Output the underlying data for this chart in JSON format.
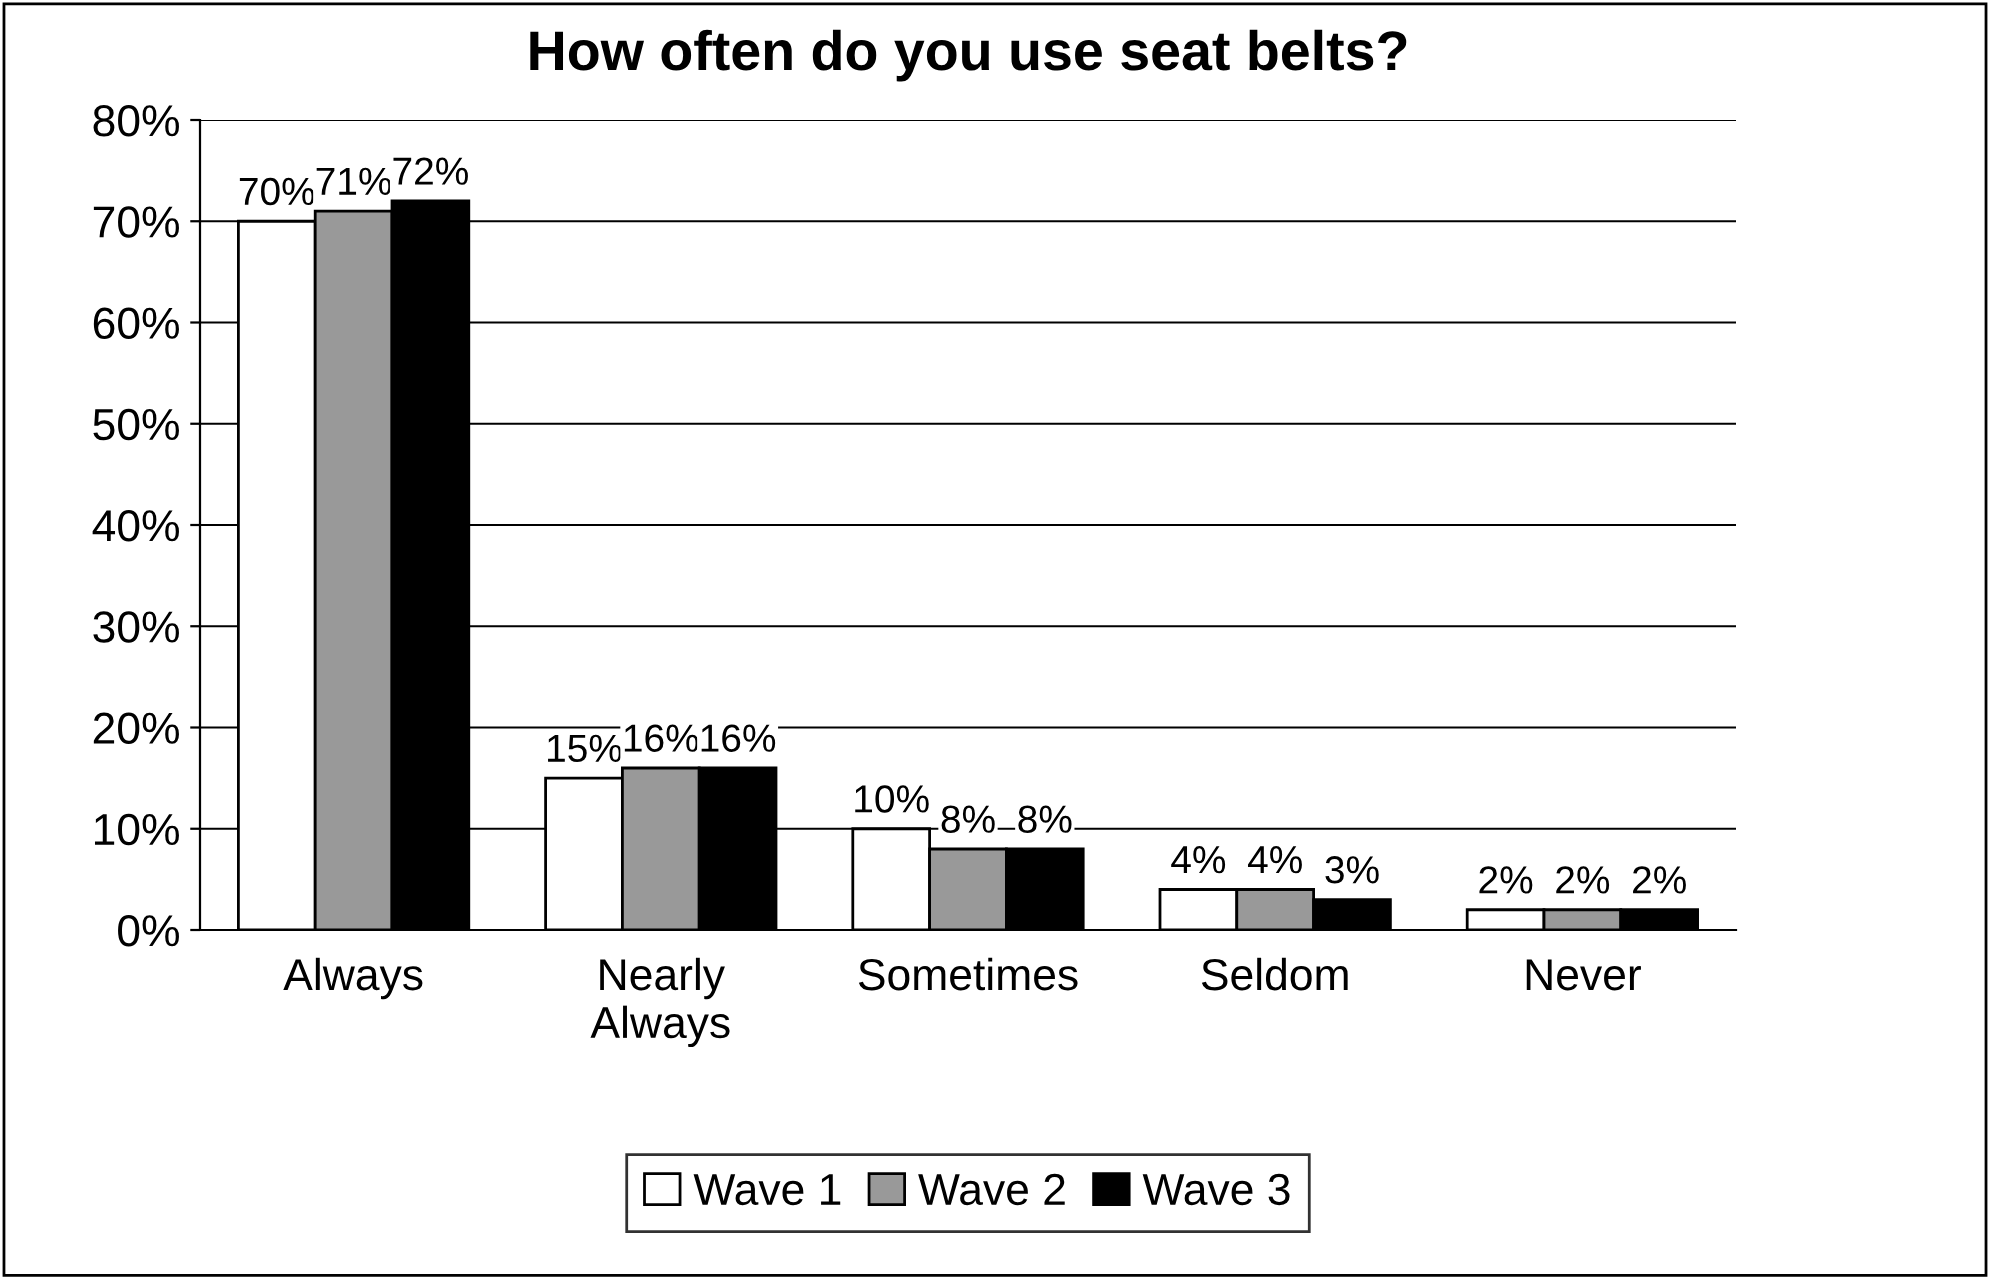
{
  "chart_data": {
    "type": "bar",
    "title": "How often do you use seat belts?",
    "categories": [
      "Always",
      "Nearly Always",
      "Sometimes",
      "Seldom",
      "Never"
    ],
    "series": [
      {
        "name": "Wave 1",
        "color": "#ffffff",
        "values": [
          70,
          15,
          10,
          4,
          2
        ],
        "value_labels": [
          "70%",
          "15%",
          "10%",
          "4%",
          "2%"
        ]
      },
      {
        "name": "Wave 2",
        "color": "#999999",
        "values": [
          71,
          16,
          8,
          4,
          2
        ],
        "value_labels": [
          "71%",
          "16%",
          "8%",
          "4%",
          "2%"
        ]
      },
      {
        "name": "Wave 3",
        "color": "#000000",
        "values": [
          72,
          16,
          8,
          3,
          2
        ],
        "value_labels": [
          "72%",
          "16%",
          "8%",
          "3%",
          "2%"
        ]
      }
    ],
    "ylim": [
      0,
      80
    ],
    "yticks": [
      {
        "value": 0,
        "label": "0%"
      },
      {
        "value": 10,
        "label": "10%"
      },
      {
        "value": 20,
        "label": "20%"
      },
      {
        "value": 30,
        "label": "30%"
      },
      {
        "value": 40,
        "label": "40%"
      },
      {
        "value": 50,
        "label": "50%"
      },
      {
        "value": 60,
        "label": "60%"
      },
      {
        "value": 70,
        "label": "70%"
      },
      {
        "value": 80,
        "label": "80%"
      }
    ],
    "grid": "y",
    "legend": "bottom"
  }
}
